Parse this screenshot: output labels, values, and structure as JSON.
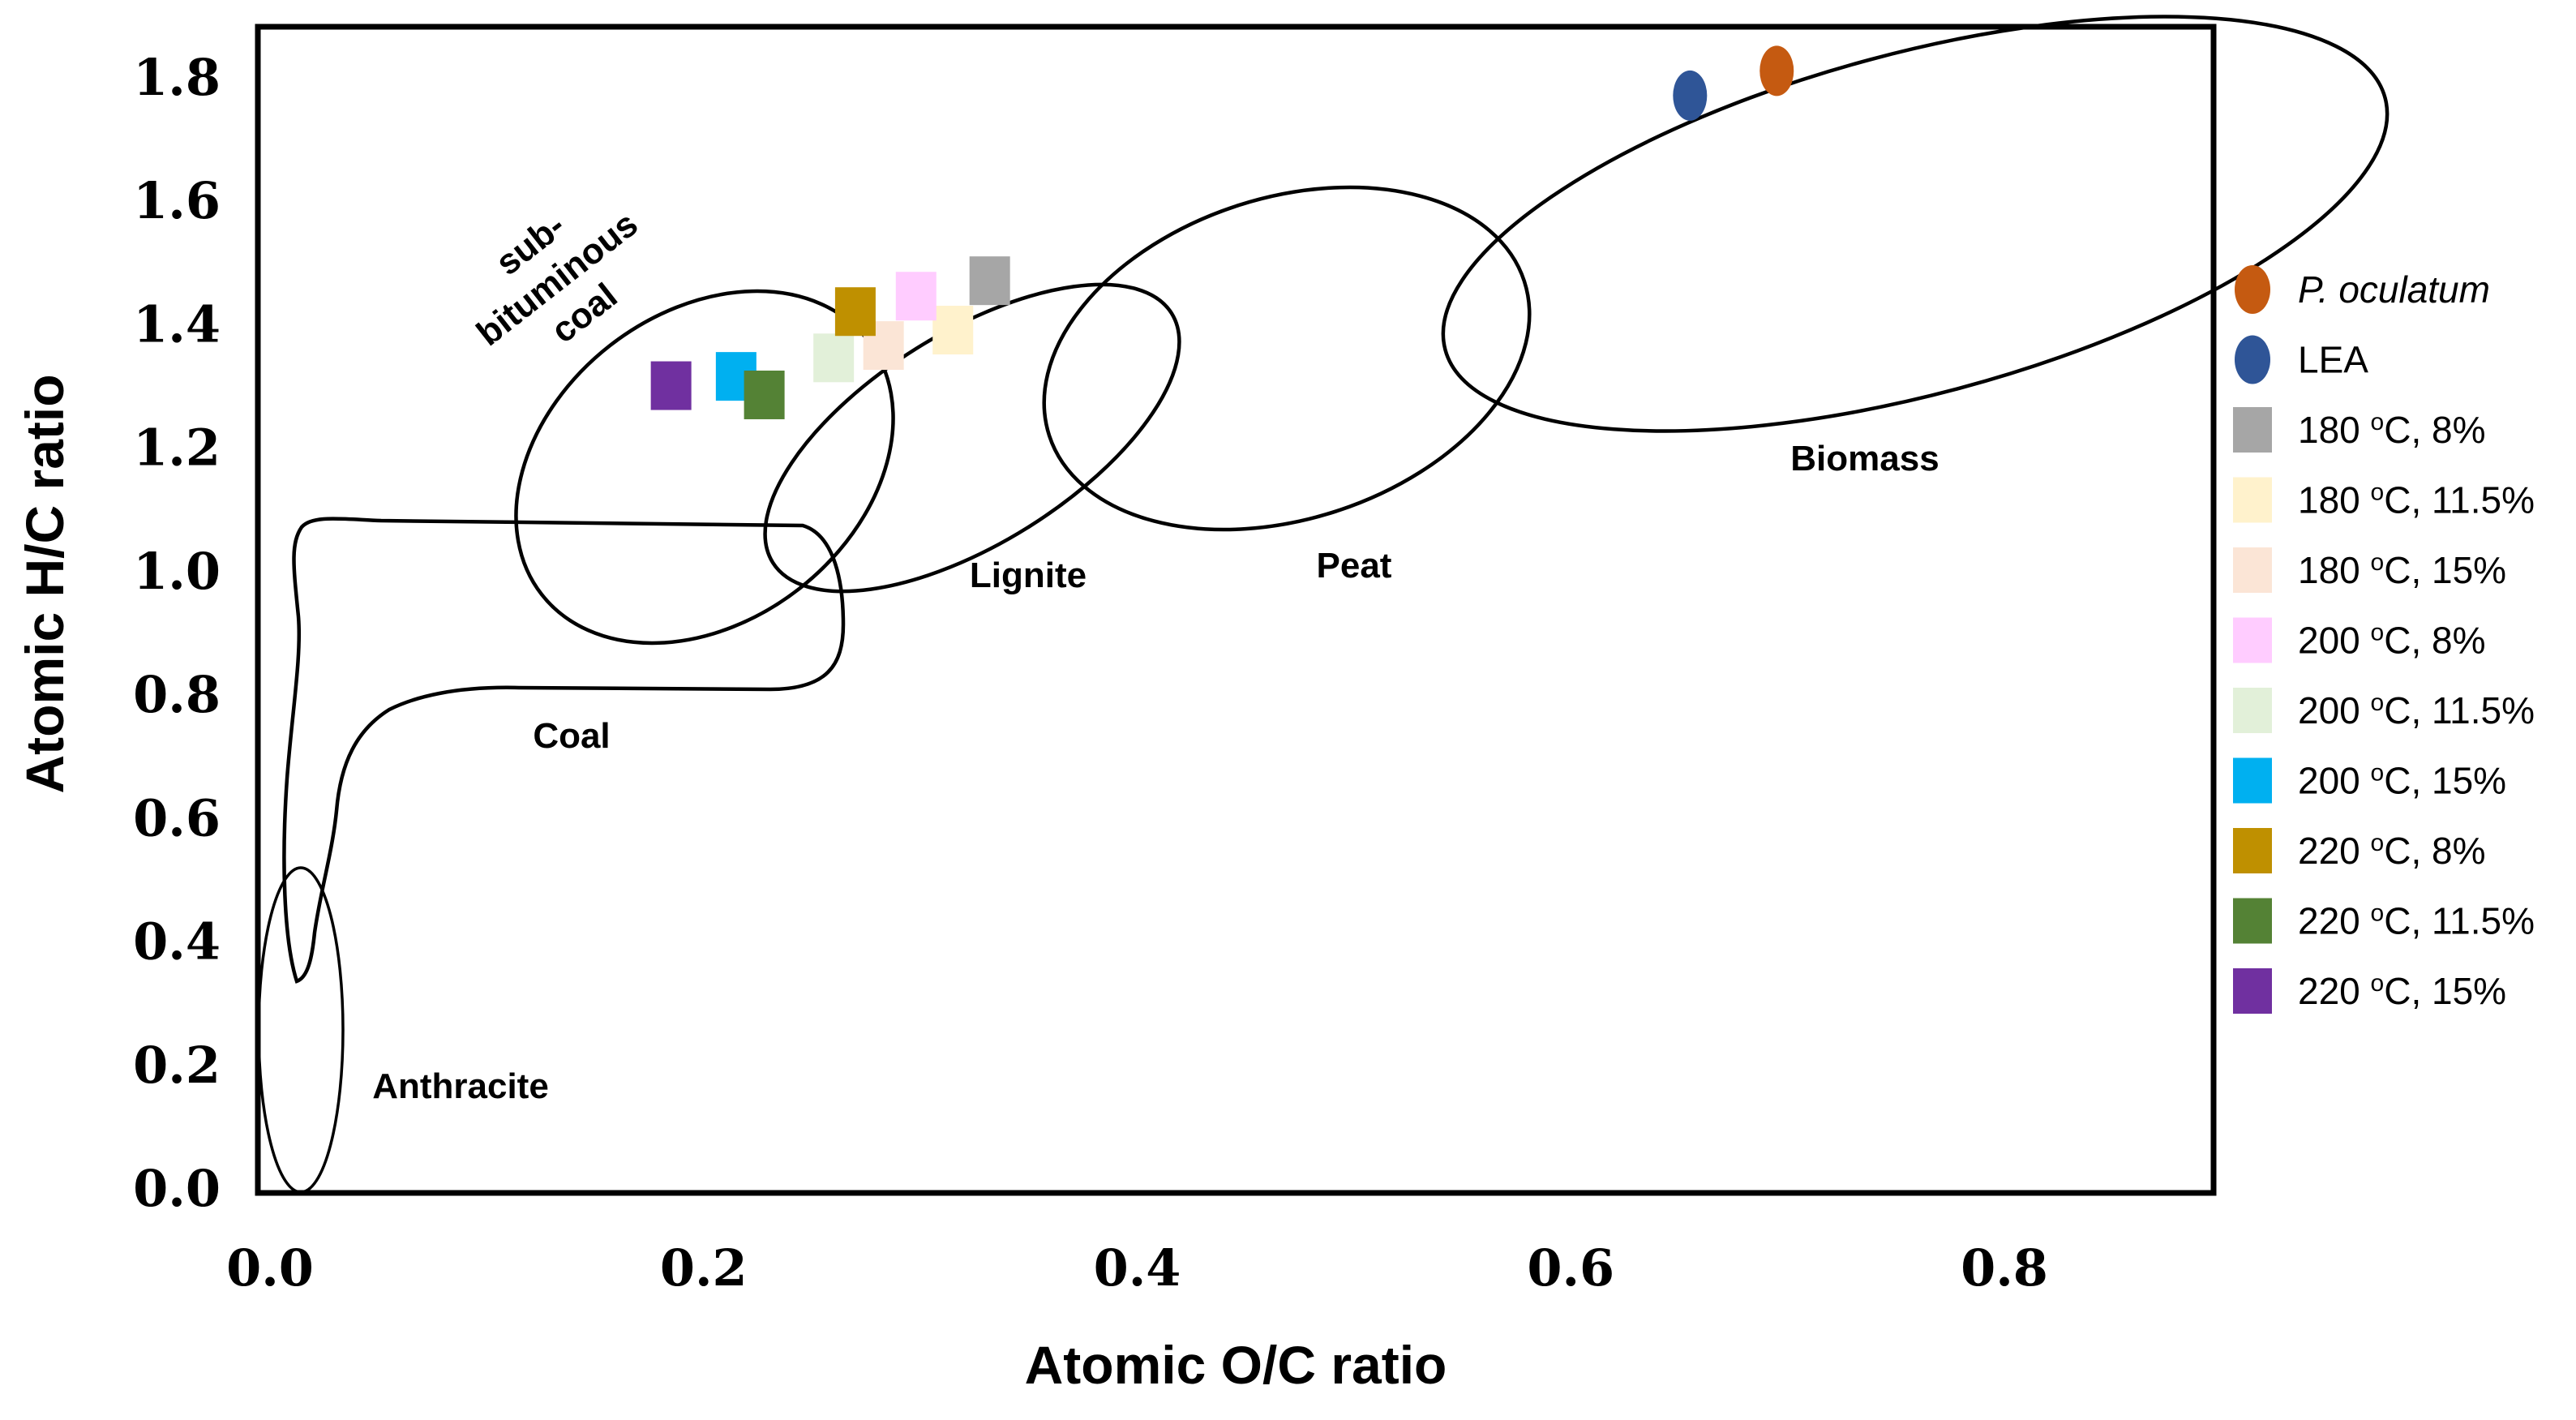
{
  "chart_data": {
    "type": "scatter",
    "xlabel": "Atomic O/C ratio",
    "ylabel": "Atomic H/C ratio",
    "xlim": [
      0.0,
      0.9
    ],
    "ylim": [
      0.0,
      1.85
    ],
    "x_ticks": [
      "0.0",
      "0.2",
      "0.4",
      "0.6",
      "0.8"
    ],
    "y_ticks": [
      "0.0",
      "0.2",
      "0.4",
      "0.6",
      "0.8",
      "1.0",
      "1.2",
      "1.4",
      "1.6",
      "1.8"
    ],
    "grid": false,
    "legend_position": "right",
    "regions": [
      {
        "name": "Biomass",
        "label": "Biomass"
      },
      {
        "name": "Peat",
        "label": "Peat"
      },
      {
        "name": "Lignite",
        "label": "Lignite"
      },
      {
        "name": "Sub-bituminous coal",
        "label_lines": [
          "sub-",
          "bituminous",
          "coal"
        ]
      },
      {
        "name": "Coal",
        "label": "Coal"
      },
      {
        "name": "Anthracite",
        "label": "Anthracite"
      }
    ],
    "series": [
      {
        "name": "P. oculatum",
        "italic": true,
        "marker": "ellipse",
        "color": "#C55A11",
        "x": 0.695,
        "y": 1.81
      },
      {
        "name": "LEA",
        "marker": "ellipse",
        "color": "#2F5597",
        "x": 0.655,
        "y": 1.77
      },
      {
        "name": "180 °C, 8%",
        "label_prefix": "180 ",
        "sup": "o",
        "label_suffix": "C, 8%",
        "marker": "square",
        "color": "#A6A6A6",
        "x": 0.332,
        "y": 1.47
      },
      {
        "name": "180 °C, 11.5%",
        "label_prefix": "180 ",
        "sup": "o",
        "label_suffix": "C, 11.5%",
        "marker": "square",
        "color": "#FFF2CC",
        "x": 0.315,
        "y": 1.39
      },
      {
        "name": "180 °C, 15%",
        "label_prefix": "180 ",
        "sup": "o",
        "label_suffix": "C, 15%",
        "marker": "square",
        "color": "#FBE5D6",
        "x": 0.283,
        "y": 1.365
      },
      {
        "name": "200 °C, 8%",
        "label_prefix": "200 ",
        "sup": "o",
        "label_suffix": "C, 8%",
        "marker": "square",
        "color": "#FFCCFF",
        "x": 0.298,
        "y": 1.445
      },
      {
        "name": "200 °C, 11.5%",
        "label_prefix": "200 ",
        "sup": "o",
        "label_suffix": "C, 11.5%",
        "marker": "square",
        "color": "#E2F0D9",
        "x": 0.26,
        "y": 1.345
      },
      {
        "name": "200 °C, 15%",
        "label_prefix": "200 ",
        "sup": "o",
        "label_suffix": "C, 15%",
        "marker": "square",
        "color": "#00B0F0",
        "x": 0.215,
        "y": 1.315
      },
      {
        "name": "220 °C, 8%",
        "label_prefix": "220 ",
        "sup": "o",
        "label_suffix": "C, 8%",
        "marker": "square",
        "color": "#BF9000",
        "x": 0.27,
        "y": 1.42
      },
      {
        "name": "220 °C, 11.5%",
        "label_prefix": "220 ",
        "sup": "o",
        "label_suffix": "C, 11.5%",
        "marker": "square",
        "color": "#548235",
        "x": 0.228,
        "y": 1.285
      },
      {
        "name": "220 °C, 15%",
        "label_prefix": "220 ",
        "sup": "o",
        "label_suffix": "C, 15%",
        "marker": "square",
        "color": "#7030A0",
        "x": 0.185,
        "y": 1.3
      }
    ]
  }
}
